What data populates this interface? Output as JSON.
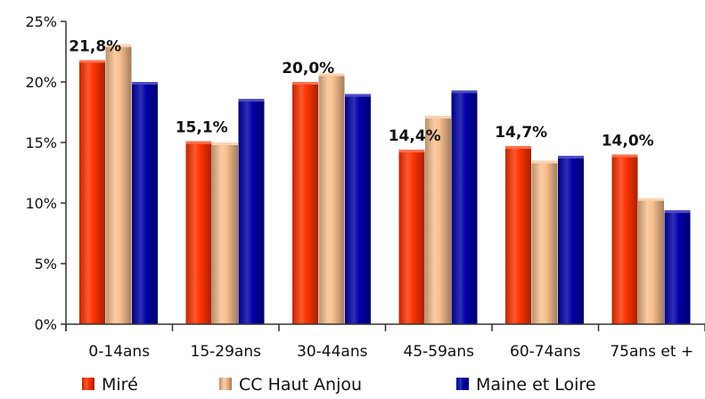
{
  "chart_data": {
    "type": "bar",
    "categories": [
      "0-14ans",
      "15-29ans",
      "30-44ans",
      "45-59ans",
      "60-74ans",
      "75ans et +"
    ],
    "series": [
      {
        "name": "Miré",
        "values": [
          21.8,
          15.1,
          20.0,
          14.4,
          14.7,
          14.0
        ],
        "color": "#FF3300"
      },
      {
        "name": "CC Haut Anjou",
        "values": [
          23.1,
          15.0,
          20.7,
          17.2,
          13.5,
          10.4
        ],
        "color": "#F9C08F"
      },
      {
        "name": "Maine et Loire",
        "values": [
          20.0,
          18.6,
          19.0,
          19.3,
          13.9,
          9.4
        ],
        "color": "#0000A8"
      }
    ],
    "data_labels": [
      "21,8%",
      "15,1%",
      "20,0%",
      "14,4%",
      "14,7%",
      "14,0%"
    ],
    "y_ticks": [
      "0%",
      "5%",
      "10%",
      "15%",
      "20%",
      "25%"
    ],
    "ylim": [
      0,
      25
    ],
    "y_tick_values": [
      0,
      5,
      10,
      15,
      20,
      25
    ],
    "title": "",
    "xlabel": "",
    "ylabel": "",
    "grid": false,
    "legend_position": "bottom"
  }
}
